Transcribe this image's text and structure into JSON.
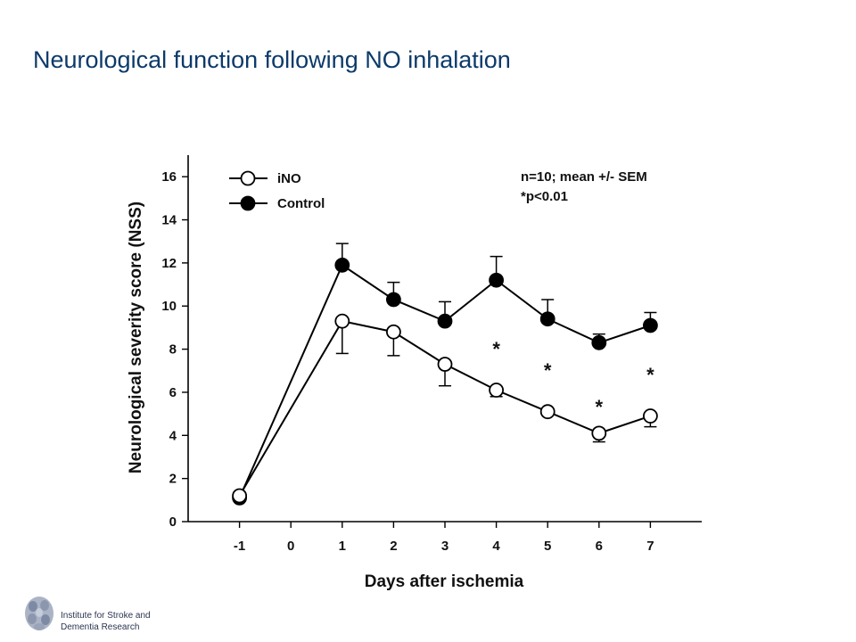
{
  "slide": {
    "title": "Neurological function following NO inhalation"
  },
  "footer": {
    "institute_line1": "Institute for Stroke and",
    "institute_line2": "Dementia Research"
  },
  "chart_data": {
    "type": "line",
    "xlabel": "Days after ischemia",
    "ylabel": "Neurological severity score (NSS)",
    "xlim": [
      -2,
      8
    ],
    "ylim": [
      0,
      17
    ],
    "x_ticks": [
      -1,
      0,
      1,
      2,
      3,
      4,
      5,
      6,
      7
    ],
    "y_ticks": [
      0,
      2,
      4,
      6,
      8,
      10,
      12,
      14,
      16
    ],
    "legend_position": "top-left",
    "annotation_lines": [
      "n=10; mean +/- SEM",
      "*p<0.01"
    ],
    "significance_marker": "*",
    "significant_days": [
      4,
      5,
      6,
      7
    ],
    "series": [
      {
        "name": "iNO",
        "marker": "open-circle",
        "x": [
          -1,
          1,
          2,
          3,
          4,
          5,
          6,
          7
        ],
        "y": [
          1.2,
          9.3,
          8.8,
          7.3,
          6.1,
          5.1,
          4.1,
          4.9
        ],
        "err": [
          0.0,
          1.5,
          1.1,
          1.0,
          0.3,
          0.0,
          0.4,
          0.5
        ],
        "err_direction": "down"
      },
      {
        "name": "Control",
        "marker": "filled-circle",
        "x": [
          -1,
          1,
          2,
          3,
          4,
          5,
          6,
          7
        ],
        "y": [
          1.1,
          11.9,
          10.3,
          9.3,
          11.2,
          9.4,
          8.3,
          9.1
        ],
        "err": [
          0.0,
          1.0,
          0.8,
          0.9,
          1.1,
          0.9,
          0.4,
          0.6
        ],
        "err_direction": "up"
      }
    ]
  }
}
